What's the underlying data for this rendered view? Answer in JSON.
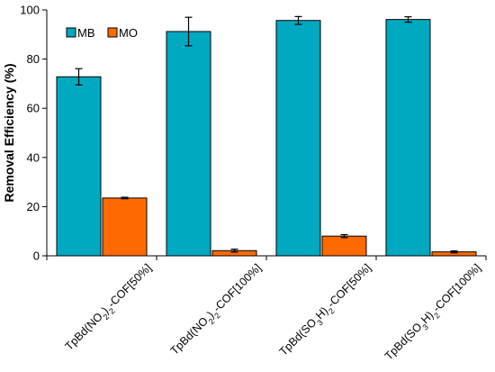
{
  "chart_data": {
    "type": "bar",
    "title": "",
    "xlabel": "",
    "ylabel": "Removal Efficiency (%)",
    "ylim": [
      0,
      100
    ],
    "yticks": [
      0,
      20,
      40,
      60,
      80,
      100
    ],
    "grid": false,
    "legend_position": "top-left",
    "categories": [
      {
        "base": "TpBd(NO",
        "sub1": "2",
        "mid": ")",
        "sub2": "2",
        "tail": "-COF[50%]"
      },
      {
        "base": "TpBd(NO",
        "sub1": "2",
        "mid": ")",
        "sub2": "2",
        "tail": "-COF[100%]"
      },
      {
        "base": "TpBd(SO",
        "sub1": "3",
        "mid": "H)",
        "sub2": "2",
        "tail": "-COF[50%]"
      },
      {
        "base": "TpBd(SO",
        "sub1": "3",
        "mid": "H)",
        "sub2": "2",
        "tail": "-COF[100%]"
      }
    ],
    "series": [
      {
        "name": "MB",
        "color": "#00A8C0",
        "values": [
          72.8,
          91.2,
          95.7,
          96.1
        ],
        "errors": [
          3.3,
          5.8,
          1.6,
          1.1
        ]
      },
      {
        "name": "MO",
        "color": "#FF6A00",
        "values": [
          23.5,
          2.1,
          8.0,
          1.6
        ],
        "errors": [
          0.3,
          0.6,
          0.6,
          0.4
        ]
      }
    ]
  }
}
